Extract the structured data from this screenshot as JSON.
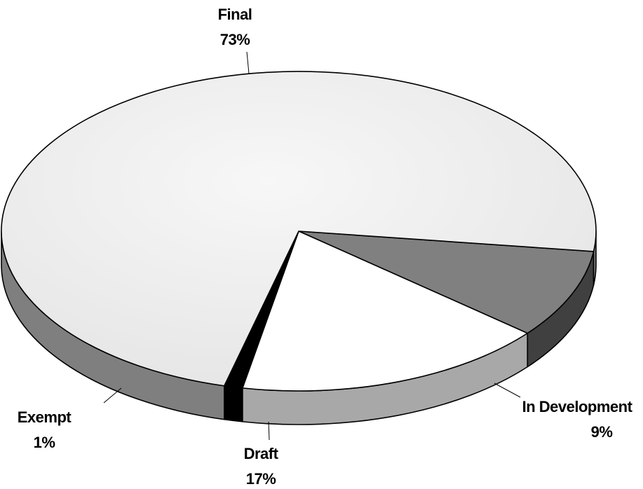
{
  "chart_data": {
    "type": "pie",
    "style": "3d",
    "slices": [
      {
        "category": "Final",
        "value": 73,
        "value_label": "73%",
        "color": "#efefef",
        "side_color": "#7f7f7f"
      },
      {
        "category": "In Development",
        "value": 9,
        "value_label": "9%",
        "color": "#808080",
        "side_color": "#404040"
      },
      {
        "category": "Draft",
        "value": 17,
        "value_label": "17%",
        "color": "#ffffff",
        "side_color": "#a8a8a8"
      },
      {
        "category": "Exempt",
        "value": 1,
        "value_label": "1%",
        "color": "#000000",
        "side_color": "#000000"
      }
    ]
  }
}
